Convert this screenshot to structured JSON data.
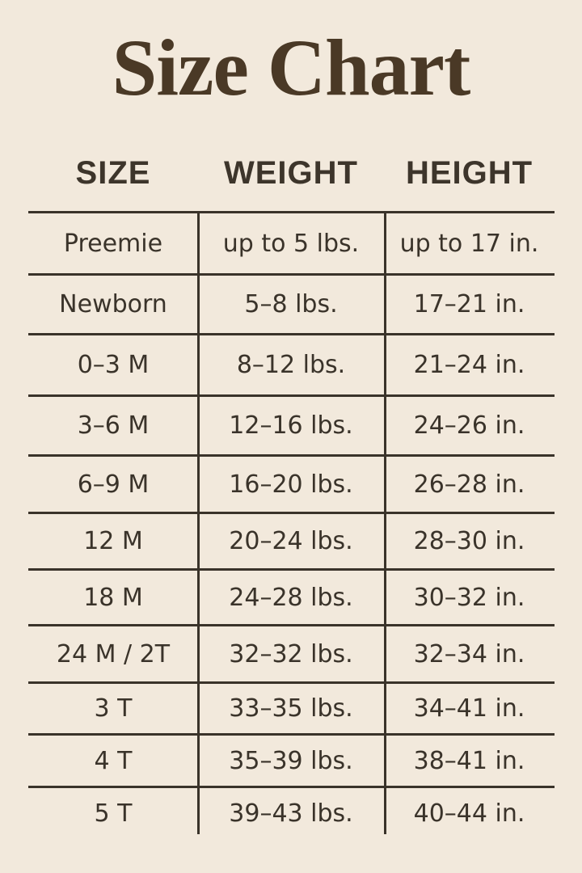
{
  "chart_data": {
    "type": "table",
    "title": "Size Chart",
    "columns": [
      "SIZE",
      "WEIGHT",
      "HEIGHT"
    ],
    "rows": [
      [
        "Preemie",
        "up to 5 lbs.",
        "up to 17 in."
      ],
      [
        "Newborn",
        "5–8 lbs.",
        "17–21 in."
      ],
      [
        "0–3 M",
        "8–12 lbs.",
        "21–24 in."
      ],
      [
        "3–6 M",
        "12–16 lbs.",
        "24–26 in."
      ],
      [
        "6–9 M",
        "16–20 lbs.",
        "26–28 in."
      ],
      [
        "12 M",
        "20–24 lbs.",
        "28–30 in."
      ],
      [
        "18 M",
        "24–28 lbs.",
        "30–32 in."
      ],
      [
        "24 M / 2T",
        "32–32 lbs.",
        "32–34 in."
      ],
      [
        "3 T",
        "33–35 lbs.",
        "34–41 in."
      ],
      [
        "4 T",
        "35–39 lbs.",
        "38–41 in."
      ],
      [
        "5 T",
        "39–43 lbs.",
        "40–44 in."
      ]
    ],
    "layout": {
      "grid": "horizontal rules between all rows, no bottom rule; two vertical column dividers extending below last row",
      "legend": "none"
    }
  },
  "colors": {
    "background": "#f2e9dc",
    "title": "#4a3926",
    "text": "#3a332a",
    "line": "#3a332a"
  }
}
